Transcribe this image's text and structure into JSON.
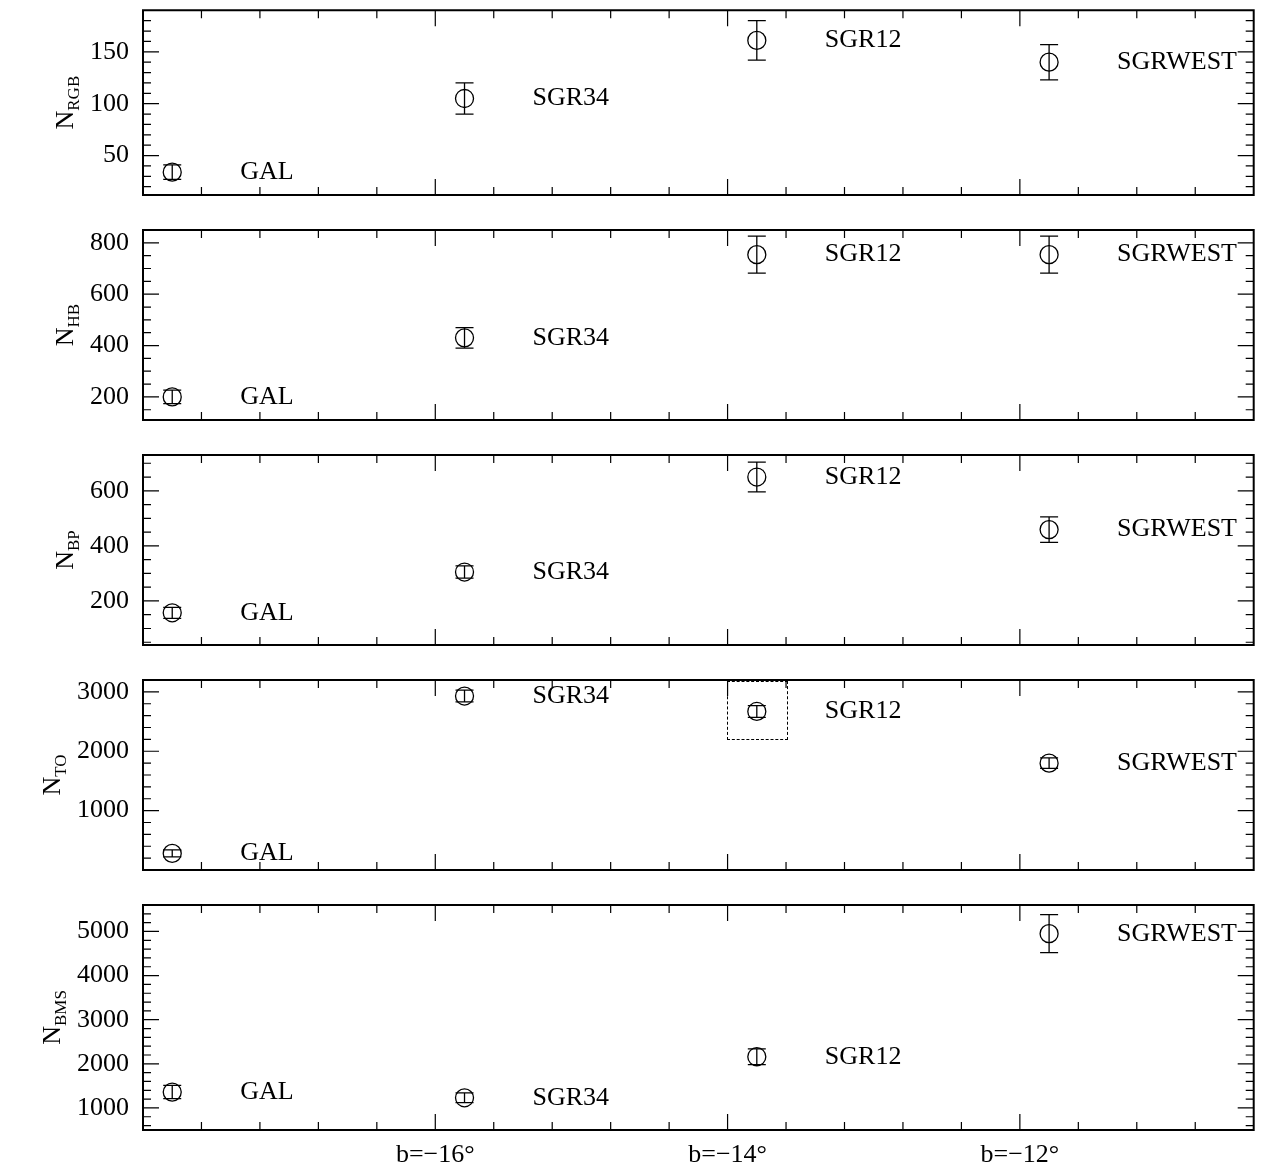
{
  "chart_data": [
    {
      "type": "scatter",
      "ylabel": "N$_{RGB}$",
      "marker": "circle",
      "tick_labels": "y",
      "x": [
        -17.8,
        -15.8,
        -13.8,
        -11.8
      ],
      "series": [
        {
          "color": "#000000",
          "values": [
            34,
            105,
            161,
            140
          ],
          "errors": [
            7,
            15,
            19,
            17
          ]
        }
      ],
      "xlim": [
        -18,
        -10.4
      ],
      "ylim": [
        12,
        190
      ],
      "yticks": [
        {
          "value": 20,
          "label": null
        },
        {
          "value": 30,
          "label": null
        },
        {
          "value": 40,
          "label": null
        },
        50,
        {
          "value": 60,
          "label": null
        },
        {
          "value": 70,
          "label": null
        },
        {
          "value": 80,
          "label": null
        },
        {
          "value": 90,
          "label": null
        },
        100,
        {
          "value": 110,
          "label": null
        },
        {
          "value": 120,
          "label": null
        },
        {
          "value": 130,
          "label": null
        },
        {
          "value": 140,
          "label": null
        },
        150,
        {
          "value": 160,
          "label": null
        },
        {
          "value": 170,
          "label": null
        },
        {
          "value": 180,
          "label": null
        }
      ],
      "annotations": [
        {
          "text": "GAL",
          "x": -17.8,
          "y": 34
        },
        {
          "text": "SGR34",
          "x": -15.8,
          "y": 105
        },
        {
          "text": "SGR12",
          "x": -13.8,
          "y": 161
        },
        {
          "text": "SGRWEST",
          "x": -11.8,
          "y": 140
        }
      ]
    },
    {
      "type": "scatter",
      "ylabel": "N$_{HB}$",
      "marker": "circle",
      "tick_labels": "y",
      "x": [
        -17.8,
        -15.8,
        -13.8,
        -11.8
      ],
      "series": [
        {
          "color": "#000000",
          "values": [
            200,
            430,
            754,
            754
          ],
          "errors": [
            26,
            40,
            72,
            72
          ]
        }
      ],
      "xlim": [
        -18,
        -10.4
      ],
      "ylim": [
        110,
        850
      ],
      "yticks": [
        {
          "value": 150,
          "label": null
        },
        200,
        {
          "value": 250,
          "label": null
        },
        {
          "value": 300,
          "label": null
        },
        {
          "value": 350,
          "label": null
        },
        400,
        {
          "value": 450,
          "label": null
        },
        {
          "value": 500,
          "label": null
        },
        {
          "value": 550,
          "label": null
        },
        600,
        {
          "value": 650,
          "label": null
        },
        {
          "value": 700,
          "label": null
        },
        {
          "value": 750,
          "label": null
        },
        800
      ],
      "annotations": [
        {
          "text": "GAL",
          "x": -17.8,
          "y": 200
        },
        {
          "text": "SGR34",
          "x": -15.8,
          "y": 430
        },
        {
          "text": "SGR12",
          "x": -13.8,
          "y": 754
        },
        {
          "text": "SGRWEST",
          "x": -11.8,
          "y": 754
        }
      ]
    },
    {
      "type": "scatter",
      "ylabel": "N$_{BP}$",
      "marker": "circle",
      "tick_labels": "y",
      "x": [
        -17.8,
        -15.8,
        -13.8,
        -11.8
      ],
      "series": [
        {
          "color": "#000000",
          "values": [
            157,
            305,
            650,
            459
          ],
          "errors": [
            20,
            22,
            54,
            46
          ]
        }
      ],
      "xlim": [
        -18,
        -10.4
      ],
      "ylim": [
        40,
        730
      ],
      "yticks": [
        {
          "value": 50,
          "label": null
        },
        {
          "value": 100,
          "label": null
        },
        {
          "value": 150,
          "label": null
        },
        200,
        {
          "value": 250,
          "label": null
        },
        {
          "value": 300,
          "label": null
        },
        {
          "value": 350,
          "label": null
        },
        400,
        {
          "value": 450,
          "label": null
        },
        {
          "value": 500,
          "label": null
        },
        {
          "value": 550,
          "label": null
        },
        600,
        {
          "value": 650,
          "label": null
        },
        {
          "value": 700,
          "label": null
        }
      ],
      "annotations": [
        {
          "text": "GAL",
          "x": -17.8,
          "y": 157
        },
        {
          "text": "SGR34",
          "x": -15.8,
          "y": 305
        },
        {
          "text": "SGR12",
          "x": -13.8,
          "y": 650
        },
        {
          "text": "SGRWEST",
          "x": -11.8,
          "y": 459
        }
      ]
    },
    {
      "type": "scatter",
      "ylabel": "N$_{TO}$",
      "marker": "circle",
      "tick_labels": "y",
      "x": [
        -17.8,
        -15.8,
        -13.8,
        -11.8
      ],
      "series": [
        {
          "color": "#000000",
          "values": [
            280,
            2930,
            2670,
            1800
          ],
          "errors": [
            60,
            100,
            100,
            90
          ]
        }
      ],
      "xlim": [
        -18,
        -10.4
      ],
      "ylim": [
        0,
        3200
      ],
      "yticks": [
        {
          "value": 200,
          "label": null
        },
        {
          "value": 400,
          "label": null
        },
        {
          "value": 600,
          "label": null
        },
        {
          "value": 800,
          "label": null
        },
        1000,
        {
          "value": 1200,
          "label": null
        },
        {
          "value": 1400,
          "label": null
        },
        {
          "value": 1600,
          "label": null
        },
        {
          "value": 1800,
          "label": null
        },
        2000,
        {
          "value": 2200,
          "label": null
        },
        {
          "value": 2400,
          "label": null
        },
        {
          "value": 2600,
          "label": null
        },
        {
          "value": 2800,
          "label": null
        },
        3000
      ],
      "annotations": [
        {
          "text": "GAL",
          "x": -17.8,
          "y": 280
        },
        {
          "text": "SGR34",
          "x": -15.8,
          "y": 2930
        },
        {
          "text": "SGR12",
          "x": -13.8,
          "y": 2670
        },
        {
          "text": "SGRWEST",
          "x": -11.8,
          "y": 1800
        }
      ]
    },
    {
      "type": "scatter",
      "ylabel": "N$_{BMS}$",
      "marker": "circle",
      "x": [
        -17.8,
        -15.8,
        -13.8,
        -11.8
      ],
      "series": [
        {
          "color": "#000000",
          "values": [
            1360,
            1230,
            2160,
            4950
          ],
          "errors": [
            150,
            110,
            180,
            430
          ]
        }
      ],
      "xlim": [
        -18,
        -10.4
      ],
      "xticks": [
        {
          "value": -18,
          "label": null
        },
        {
          "value": -17.6,
          "label": null
        },
        {
          "value": -17.2,
          "label": null
        },
        {
          "value": -16.8,
          "label": null
        },
        {
          "value": -16.4,
          "label": null
        },
        {
          "value": -16,
          "label": "b=−16°"
        },
        {
          "value": -15.6,
          "label": null
        },
        {
          "value": -15.2,
          "label": null
        },
        {
          "value": -14.8,
          "label": null
        },
        {
          "value": -14.4,
          "label": null
        },
        {
          "value": -14,
          "label": "b=−14°"
        },
        {
          "value": -13.6,
          "label": null
        },
        {
          "value": -13.2,
          "label": null
        },
        {
          "value": -12.8,
          "label": null
        },
        {
          "value": -12.4,
          "label": null
        },
        {
          "value": -12,
          "label": "b=−12°"
        },
        {
          "value": -11.6,
          "label": null
        },
        {
          "value": -11.2,
          "label": null
        },
        {
          "value": -10.8,
          "label": null
        }
      ],
      "ylim": [
        500,
        5600
      ],
      "yticks": [
        {
          "value": 600,
          "label": null
        },
        {
          "value": 800,
          "label": null
        },
        1000,
        {
          "value": 1200,
          "label": null
        },
        {
          "value": 1400,
          "label": null
        },
        {
          "value": 1600,
          "label": null
        },
        {
          "value": 1800,
          "label": null
        },
        2000,
        {
          "value": 2200,
          "label": null
        },
        {
          "value": 2400,
          "label": null
        },
        {
          "value": 2600,
          "label": null
        },
        {
          "value": 2800,
          "label": null
        },
        3000,
        {
          "value": 3200,
          "label": null
        },
        {
          "value": 3400,
          "label": null
        },
        {
          "value": 3600,
          "label": null
        },
        {
          "value": 3800,
          "label": null
        },
        4000,
        {
          "value": 4200,
          "label": null
        },
        {
          "value": 4400,
          "label": null
        },
        {
          "value": 4600,
          "label": null
        },
        {
          "value": 4800,
          "label": null
        },
        5000,
        {
          "value": 5200,
          "label": null
        },
        {
          "value": 5400,
          "label": null
        }
      ],
      "annotations": [
        {
          "text": "GAL",
          "x": -17.8,
          "y": 1360
        },
        {
          "text": "SGR34",
          "x": -15.8,
          "y": 1230
        },
        {
          "text": "SGR12",
          "x": -13.8,
          "y": 2160
        },
        {
          "text": "SGRWEST",
          "x": -11.8,
          "y": 4950
        }
      ]
    }
  ]
}
